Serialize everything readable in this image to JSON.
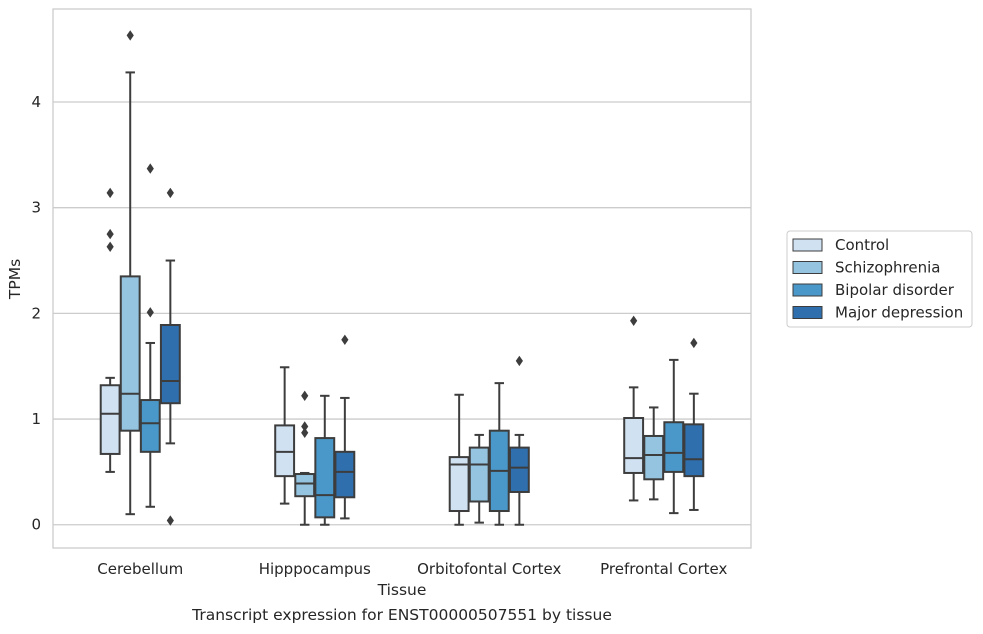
{
  "chart_data": {
    "type": "box",
    "title": "",
    "caption": "Transcript expression for ENST00000507551 by tissue",
    "xlabel": "Tissue",
    "ylabel": "TPMs",
    "ylim": [
      -0.22,
      4.88
    ],
    "yticks": [
      0,
      1,
      2,
      3,
      4
    ],
    "grid": "horizontal",
    "legend_position": "right",
    "categories": [
      "Cerebellum",
      "Hipppocampus",
      "Orbitofontal Cortex",
      "Prefrontal Cortex"
    ],
    "series": [
      {
        "name": "Control",
        "color": "#d0e1f2",
        "boxes": [
          {
            "whislo": 0.5,
            "q1": 0.67,
            "med": 1.05,
            "q3": 1.32,
            "whishi": 1.39,
            "fliers": [
              3.14,
              2.75,
              2.63
            ]
          },
          {
            "whislo": 0.2,
            "q1": 0.46,
            "med": 0.69,
            "q3": 0.94,
            "whishi": 1.49,
            "fliers": []
          },
          {
            "whislo": 0.0,
            "q1": 0.13,
            "med": 0.57,
            "q3": 0.64,
            "whishi": 1.23,
            "fliers": []
          },
          {
            "whislo": 0.23,
            "q1": 0.49,
            "med": 0.63,
            "q3": 1.01,
            "whishi": 1.3,
            "fliers": [
              1.93
            ]
          }
        ]
      },
      {
        "name": "Schizophrenia",
        "color": "#94c4df",
        "boxes": [
          {
            "whislo": 0.1,
            "q1": 0.89,
            "med": 1.24,
            "q3": 2.35,
            "whishi": 4.28,
            "fliers": [
              4.63
            ]
          },
          {
            "whislo": 0.0,
            "q1": 0.27,
            "med": 0.39,
            "q3": 0.48,
            "whishi": 0.49,
            "fliers": [
              1.22,
              0.93,
              0.87
            ]
          },
          {
            "whislo": 0.02,
            "q1": 0.22,
            "med": 0.57,
            "q3": 0.73,
            "whishi": 0.85,
            "fliers": []
          },
          {
            "whislo": 0.24,
            "q1": 0.43,
            "med": 0.66,
            "q3": 0.84,
            "whishi": 1.11,
            "fliers": []
          }
        ]
      },
      {
        "name": "Bipolar disorder",
        "color": "#4a98c9",
        "boxes": [
          {
            "whislo": 0.17,
            "q1": 0.69,
            "med": 0.96,
            "q3": 1.18,
            "whishi": 1.72,
            "fliers": [
              3.37,
              2.01
            ]
          },
          {
            "whislo": 0.0,
            "q1": 0.07,
            "med": 0.28,
            "q3": 0.82,
            "whishi": 1.22,
            "fliers": []
          },
          {
            "whislo": 0.0,
            "q1": 0.13,
            "med": 0.51,
            "q3": 0.89,
            "whishi": 1.34,
            "fliers": []
          },
          {
            "whislo": 0.11,
            "q1": 0.5,
            "med": 0.68,
            "q3": 0.97,
            "whishi": 1.56,
            "fliers": []
          }
        ]
      },
      {
        "name": "Major depression",
        "color": "#2f6fae",
        "boxes": [
          {
            "whislo": 0.77,
            "q1": 1.15,
            "med": 1.36,
            "q3": 1.89,
            "whishi": 2.5,
            "fliers": [
              3.14,
              0.04
            ]
          },
          {
            "whislo": 0.06,
            "q1": 0.26,
            "med": 0.5,
            "q3": 0.69,
            "whishi": 1.2,
            "fliers": [
              1.75
            ]
          },
          {
            "whislo": 0.0,
            "q1": 0.31,
            "med": 0.54,
            "q3": 0.73,
            "whishi": 0.85,
            "fliers": [
              1.55
            ]
          },
          {
            "whislo": 0.14,
            "q1": 0.46,
            "med": 0.62,
            "q3": 0.95,
            "whishi": 1.24,
            "fliers": [
              1.72
            ]
          }
        ]
      }
    ]
  }
}
